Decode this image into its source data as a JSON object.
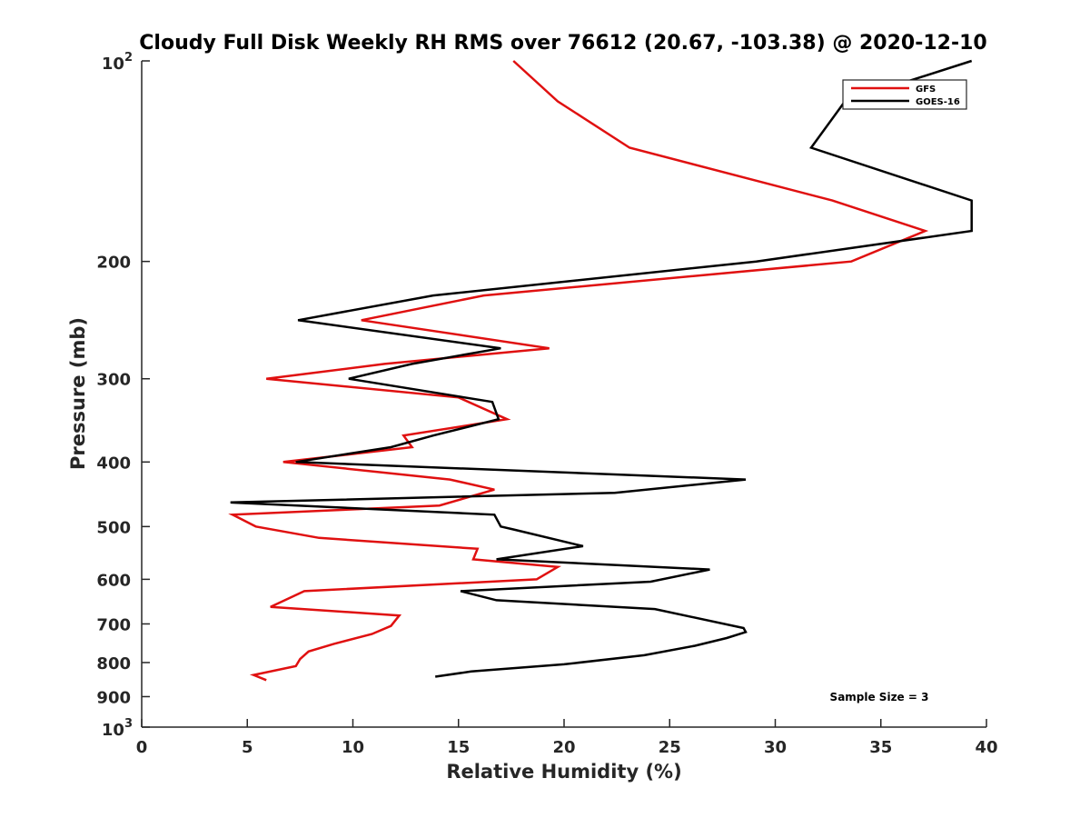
{
  "chart_data": {
    "type": "line",
    "title": "Cloudy Full Disk Weekly RH RMS over 76612 (20.67, -103.38) @ 2020-12-10",
    "xlabel": "Relative Humidity (%)",
    "ylabel": "Pressure (mb)",
    "xlim": [
      0,
      40
    ],
    "ylim": [
      100,
      1000
    ],
    "yscale": "log",
    "y_inverted": true,
    "x_ticks": [
      0,
      5,
      10,
      15,
      20,
      25,
      30,
      35,
      40
    ],
    "x_tick_labels": [
      "0",
      "5",
      "10",
      "15",
      "20",
      "25",
      "30",
      "35",
      "40"
    ],
    "y_ticks": [
      200,
      300,
      400,
      500,
      600,
      700,
      800,
      900
    ],
    "y_tick_labels": [
      "200",
      "300",
      "400",
      "500",
      "600",
      "700",
      "800",
      "900"
    ],
    "y_end_ticks": [
      {
        "value": 100,
        "base": "10",
        "exp": "2"
      },
      {
        "value": 1000,
        "base": "10",
        "exp": "3"
      }
    ],
    "legend_position": "top-right",
    "annotation": "Sample Size = 3",
    "series": [
      {
        "name": "GFS",
        "color": "#e01010",
        "points": [
          [
            17.6,
            100
          ],
          [
            19.7,
            115
          ],
          [
            23.1,
            135
          ],
          [
            32.7,
            162
          ],
          [
            37.1,
            180
          ],
          [
            33.6,
            200
          ],
          [
            16.2,
            225
          ],
          [
            10.4,
            245
          ],
          [
            19.3,
            270
          ],
          [
            11.5,
            285
          ],
          [
            5.9,
            300
          ],
          [
            15.0,
            320
          ],
          [
            17.3,
            345
          ],
          [
            12.4,
            365
          ],
          [
            12.8,
            380
          ],
          [
            6.7,
            400
          ],
          [
            14.6,
            425
          ],
          [
            16.7,
            440
          ],
          [
            14.1,
            465
          ],
          [
            4.3,
            480
          ],
          [
            5.4,
            500
          ],
          [
            8.4,
            520
          ],
          [
            15.9,
            540
          ],
          [
            15.7,
            560
          ],
          [
            19.7,
            575
          ],
          [
            18.7,
            600
          ],
          [
            7.7,
            625
          ],
          [
            6.1,
            660
          ],
          [
            12.2,
            680
          ],
          [
            11.8,
            705
          ],
          [
            10.9,
            725
          ],
          [
            9.1,
            750
          ],
          [
            7.9,
            770
          ],
          [
            7.5,
            790
          ],
          [
            7.3,
            810
          ],
          [
            5.3,
            835
          ],
          [
            5.9,
            850
          ]
        ]
      },
      {
        "name": "GOES-16",
        "color": "#000000",
        "points": [
          [
            39.3,
            100
          ],
          [
            33.3,
            115
          ],
          [
            31.7,
            135
          ],
          [
            39.3,
            162
          ],
          [
            39.3,
            180
          ],
          [
            29.1,
            200
          ],
          [
            13.8,
            225
          ],
          [
            7.4,
            245
          ],
          [
            17.0,
            270
          ],
          [
            12.8,
            285
          ],
          [
            9.8,
            300
          ],
          [
            16.6,
            325
          ],
          [
            16.9,
            345
          ],
          [
            13.8,
            365
          ],
          [
            11.8,
            380
          ],
          [
            7.3,
            400
          ],
          [
            28.6,
            425
          ],
          [
            22.4,
            445
          ],
          [
            4.2,
            460
          ],
          [
            16.7,
            480
          ],
          [
            17.0,
            500
          ],
          [
            17.6,
            505
          ],
          [
            20.9,
            535
          ],
          [
            16.8,
            560
          ],
          [
            26.9,
            580
          ],
          [
            24.1,
            605
          ],
          [
            15.1,
            625
          ],
          [
            16.8,
            645
          ],
          [
            24.3,
            665
          ],
          [
            28.5,
            710
          ],
          [
            28.6,
            720
          ],
          [
            27.7,
            735
          ],
          [
            26.2,
            755
          ],
          [
            23.8,
            780
          ],
          [
            20.0,
            805
          ],
          [
            15.6,
            825
          ],
          [
            13.9,
            840
          ]
        ]
      }
    ]
  }
}
